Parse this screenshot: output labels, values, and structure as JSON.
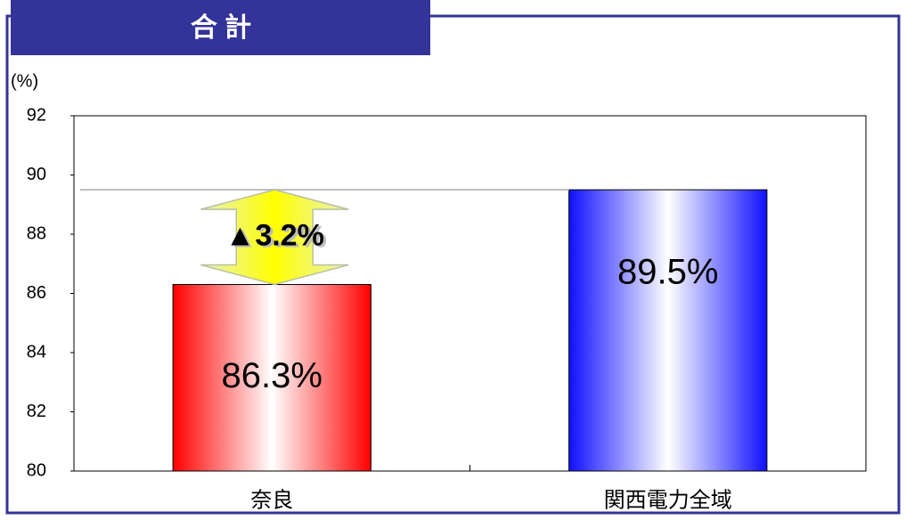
{
  "chart_data": {
    "type": "bar",
    "title": "合 計",
    "y_label": "(%)",
    "categories": [
      "奈良",
      "関西電力全域"
    ],
    "values": [
      86.3,
      89.5
    ],
    "value_labels": [
      "86.3%",
      "89.5%"
    ],
    "colors": [
      "#ff0000",
      "#1010ff"
    ],
    "annotation": "▲3.2%",
    "ylim": [
      80,
      92
    ],
    "yticks": [
      80,
      82,
      84,
      86,
      88,
      90,
      92
    ]
  }
}
